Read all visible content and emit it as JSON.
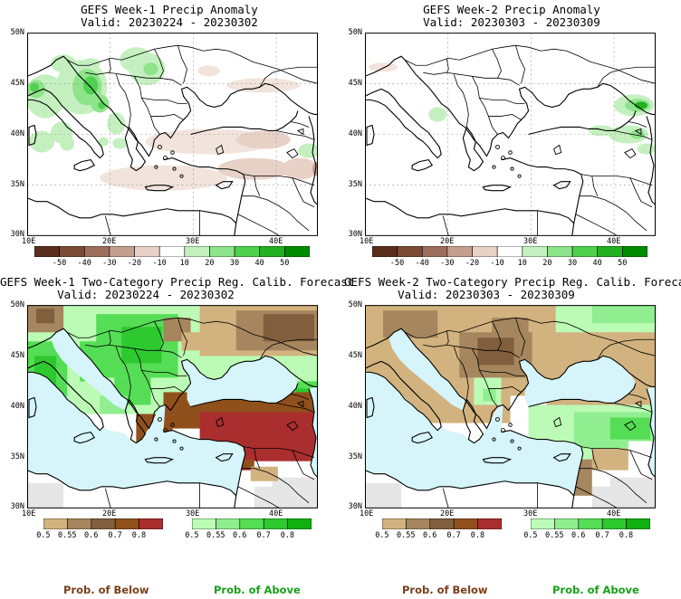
{
  "panels": [
    {
      "title_line1": "GEFS Week-1 Precip Anomaly",
      "title_line2": "Valid: 20230224 - 20230302"
    },
    {
      "title_line1": "GEFS Week-2 Precip Anomaly",
      "title_line2": "Valid: 20230303 - 20230309"
    },
    {
      "title_line1": "GEFS Week-1 Two-Category Precip Reg. Calib. Forecast",
      "title_line2": "Valid: 20230224 - 20230302"
    },
    {
      "title_line1": "GEFS Week-2 Two-Category Precip Reg. Calib. Forecast",
      "title_line2": "Valid: 20230303 - 20230309"
    }
  ],
  "lat_labels": [
    "50N",
    "45N",
    "40N",
    "35N",
    "30N"
  ],
  "lon_labels": [
    "10E",
    "20E",
    "30E",
    "40E"
  ],
  "anomaly_colorbar": {
    "ticks": [
      "-50",
      "-40",
      "-30",
      "-20",
      "-10",
      "10",
      "20",
      "30",
      "40",
      "50"
    ],
    "colors": [
      "#5a2e1c",
      "#7a4a35",
      "#9e6e5c",
      "#c49e8f",
      "#e8d2c8",
      "#ffffff",
      "#c4f0c0",
      "#8ee48a",
      "#4fd04f",
      "#20b020",
      "#008c00"
    ]
  },
  "prob_colorbar": {
    "below_ticks": [
      "0.5",
      "0.55",
      "0.6",
      "0.7",
      "0.8"
    ],
    "above_ticks": [
      "0.5",
      "0.55",
      "0.6",
      "0.7",
      "0.8"
    ],
    "below_colors": [
      "#d2b27e",
      "#a6865e",
      "#805e3e",
      "#90501c",
      "#aa2e2e"
    ],
    "above_colors": [
      "#bbfbb5",
      "#90ee90",
      "#55dd55",
      "#2ec92e",
      "#10b010"
    ],
    "below_label": "Prob. of Below",
    "above_label": "Prob. of Above"
  },
  "colors": {
    "sea": "#d6f5fa",
    "no_data": "#e6e6e6",
    "below_label_color": "#7a3e1a",
    "above_label_color": "#1aa01a"
  }
}
